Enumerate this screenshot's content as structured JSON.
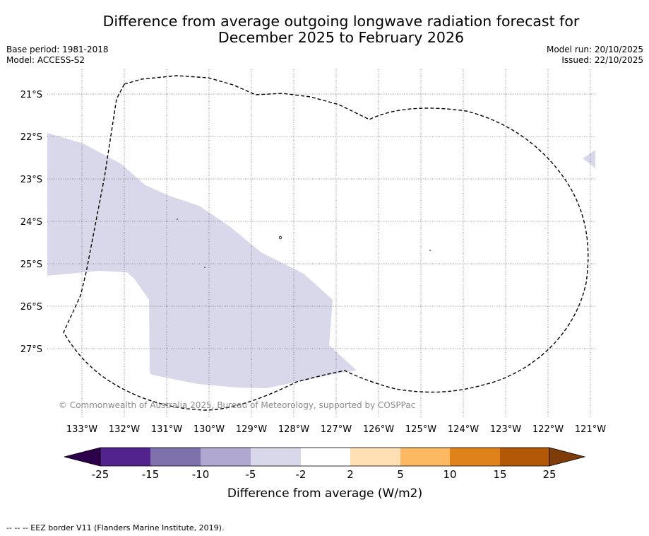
{
  "title": {
    "line1": "Difference from average outgoing longwave radiation forecast for",
    "line2": "December 2025 to February 2026"
  },
  "meta": {
    "base_period": "Base period: 1981-2018",
    "model": "Model: ACCESS-S2",
    "model_run": "Model run: 20/10/2025",
    "issued": "Issued: 22/10/2025"
  },
  "map": {
    "lat_labels": [
      "21°S",
      "22°S",
      "23°S",
      "24°S",
      "25°S",
      "26°S",
      "27°S"
    ],
    "lon_labels": [
      "133°W",
      "132°W",
      "131°W",
      "130°W",
      "129°W",
      "128°W",
      "127°W",
      "126°W",
      "125°W",
      "124°W",
      "123°W",
      "122°W",
      "121°W"
    ],
    "copyright": "© Commonwealth of Australia 2025, Bureau of Meteorology, supported by COSPPac",
    "anomaly_color": "#d8d8ea",
    "eez_color": "#000000"
  },
  "colorbar": {
    "ticks": [
      "-25",
      "-15",
      "-10",
      "-5",
      "-2",
      "2",
      "5",
      "10",
      "15",
      "25"
    ],
    "colors": [
      "#52238d",
      "#7f71ab",
      "#b0a8d1",
      "#d8d8ea",
      "#ffffff",
      "#ffe0b5",
      "#fdb862",
      "#e0821a",
      "#b35806"
    ],
    "low_extend_color": "#2d004b",
    "high_extend_color": "#7f3b08",
    "label": "Difference from average (W/m2)"
  },
  "footer": "--  --  -- EEZ border V11 (Flanders Marine Institute, 2019)."
}
